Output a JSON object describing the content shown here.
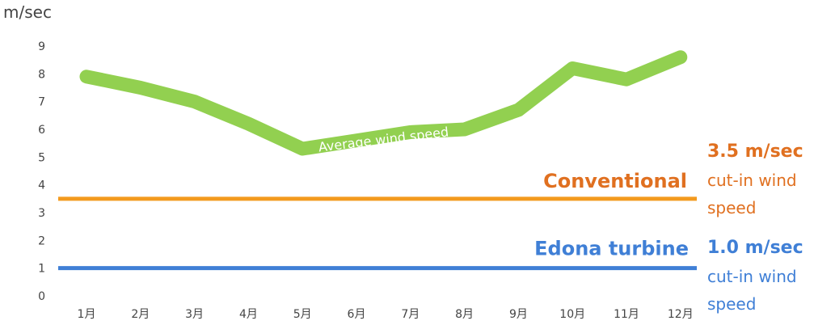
{
  "chart_data": {
    "type": "line",
    "ylabel": "m/sec",
    "ylim": [
      0,
      9
    ],
    "yticks": [
      "0",
      "1",
      "2",
      "3",
      "4",
      "5",
      "6",
      "7",
      "8",
      "9"
    ],
    "categories": [
      "1月",
      "2月",
      "3月",
      "4月",
      "5月",
      "6月",
      "7月",
      "8月",
      "9月",
      "10月",
      "11月",
      "12月"
    ],
    "grid": false,
    "series": [
      {
        "name": "Average wind speed",
        "color": "#92d050",
        "values": [
          7.9,
          7.5,
          7.0,
          6.2,
          5.3,
          5.6,
          5.9,
          6.0,
          6.7,
          8.2,
          7.8,
          8.6
        ]
      },
      {
        "name": "Conventional",
        "color": "#f39a1e",
        "values": [
          3.5,
          3.5,
          3.5,
          3.5,
          3.5,
          3.5,
          3.5,
          3.5,
          3.5,
          3.5,
          3.5,
          3.5
        ]
      },
      {
        "name": "Edona turbine",
        "color": "#3f7fd6",
        "values": [
          1.0,
          1.0,
          1.0,
          1.0,
          1.0,
          1.0,
          1.0,
          1.0,
          1.0,
          1.0,
          1.0,
          1.0
        ]
      }
    ],
    "annotations": [
      {
        "value_text": "3.5 m/sec",
        "line1": "cut-in wind",
        "line2": "speed",
        "color": "#e07020",
        "text_color": "#e07020"
      },
      {
        "value_text": "1.0 m/sec",
        "line1": "cut-in wind",
        "line2": "speed",
        "color": "#3f7fd6",
        "text_color": "#3f7fd6"
      }
    ]
  }
}
